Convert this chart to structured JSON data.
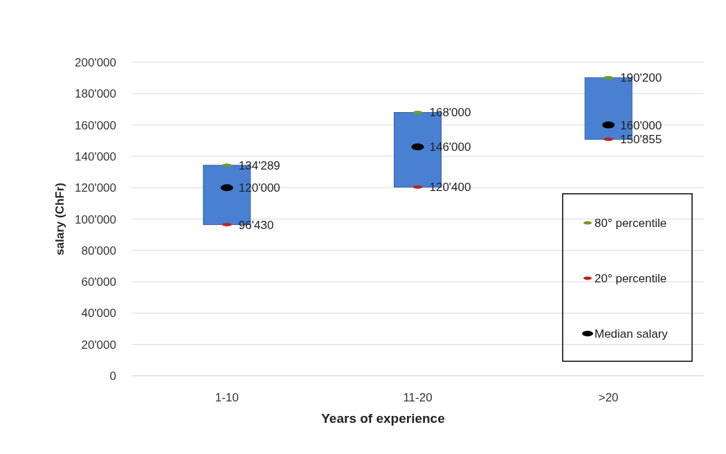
{
  "chart_data": {
    "type": "bar",
    "xlabel": "Years of experience",
    "ylabel": "salary (ChFr)",
    "categories": [
      "1-10",
      "11-20",
      ">20"
    ],
    "ylim": [
      0,
      200000
    ],
    "yticks": [
      {
        "value": 0,
        "label": "0"
      },
      {
        "value": 20000,
        "label": "20'000"
      },
      {
        "value": 40000,
        "label": "40'000"
      },
      {
        "value": 60000,
        "label": "60'000"
      },
      {
        "value": 80000,
        "label": "80'000"
      },
      {
        "value": 100000,
        "label": "100'000"
      },
      {
        "value": 120000,
        "label": "120'000"
      },
      {
        "value": 140000,
        "label": "140'000"
      },
      {
        "value": 160000,
        "label": "160'000"
      },
      {
        "value": 180000,
        "label": "180'000"
      },
      {
        "value": 200000,
        "label": "200'000"
      }
    ],
    "grid": "y",
    "legend": "bottom right",
    "series": [
      {
        "color": "#4a80d2",
        "base": [
          96430,
          120400,
          150855
        ],
        "values": [
          37859,
          47600,
          39345
        ]
      },
      {
        "type": "scatter",
        "name": "80° percentile",
        "color": "#6f9e22",
        "values": [
          134289,
          168000,
          190200
        ],
        "value_labels": [
          "134'289",
          "168'000",
          "190'200"
        ]
      },
      {
        "type": "scatter",
        "name": "20° percentile",
        "color": "#c0241c",
        "values": [
          96430,
          120400,
          150855
        ],
        "value_labels": [
          "96'430",
          "120'400",
          "150'855"
        ]
      },
      {
        "type": "scatter",
        "name": "Median salary",
        "color": "#000000",
        "values": [
          120000,
          146000,
          160000
        ],
        "value_labels": [
          "120'000",
          "146'000",
          "160'000"
        ]
      }
    ]
  }
}
